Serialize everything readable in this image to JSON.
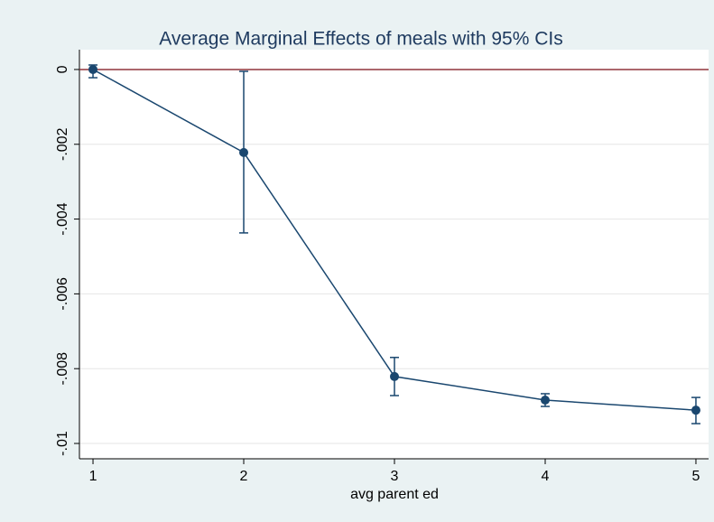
{
  "chart_data": {
    "type": "line",
    "title": "Average Marginal Effects of meals with 95% CIs",
    "x_label": "avg parent ed",
    "x": [
      1,
      2,
      3,
      4,
      5
    ],
    "series": [
      {
        "color": "#1a476f",
        "values": [
          0,
          -0.00222,
          -0.00821,
          -0.00884,
          -0.00911
        ],
        "ci_lower": [
          -0.00022,
          -0.00437,
          -0.00872,
          -0.00901,
          -0.00947
        ],
        "ci_upper": [
          0.00012,
          -5e-05,
          -0.0077,
          -0.00867,
          -0.00877
        ]
      }
    ],
    "xlim": [
      0.91,
      5.084
    ],
    "xticks": [
      1,
      2,
      3,
      4,
      5
    ],
    "ylim": [
      -0.01041,
      0.00053
    ],
    "yticks": [
      {
        "value": 0,
        "label": "0"
      },
      {
        "value": -0.002,
        "label": "-.002"
      },
      {
        "value": -0.004,
        "label": "-.004"
      },
      {
        "value": -0.006,
        "label": "-.006"
      },
      {
        "value": -0.008,
        "label": "-.008"
      },
      {
        "value": -0.01,
        "label": "-.01"
      }
    ],
    "grid": true,
    "yline": {
      "value": 0,
      "color": "#90353b"
    }
  }
}
